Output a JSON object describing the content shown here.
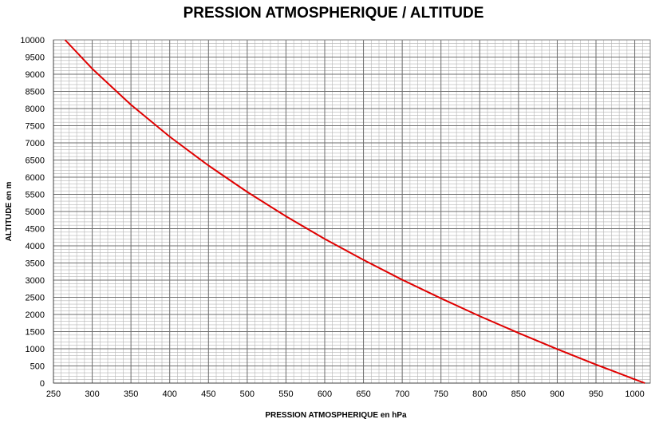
{
  "chart_data": {
    "type": "line",
    "title": "PRESSION ATMOSPHERIQUE / ALTITUDE",
    "xlabel": "PRESSION ATMOSPHERIQUE  en hPa",
    "ylabel": "ALTITUDE en m",
    "xlim": [
      250,
      1020
    ],
    "ylim": [
      0,
      10000
    ],
    "x_ticks": [
      250,
      300,
      350,
      400,
      450,
      500,
      550,
      600,
      650,
      700,
      750,
      800,
      850,
      900,
      950,
      1000
    ],
    "y_ticks": [
      0,
      500,
      1000,
      1500,
      2000,
      2500,
      3000,
      3500,
      4000,
      4500,
      5000,
      5500,
      6000,
      6500,
      7000,
      7500,
      8000,
      8500,
      9000,
      9500,
      10000
    ],
    "grid": true,
    "series": [
      {
        "color": "#e00000",
        "x": [
          265,
          300,
          350,
          400,
          450,
          500,
          550,
          600,
          650,
          700,
          750,
          800,
          850,
          900,
          950,
          1000,
          1013
        ],
        "y": [
          10000,
          9160,
          8110,
          7180,
          6340,
          5570,
          4860,
          4200,
          3590,
          3010,
          2470,
          1950,
          1460,
          990,
          540,
          110,
          0
        ]
      }
    ]
  }
}
